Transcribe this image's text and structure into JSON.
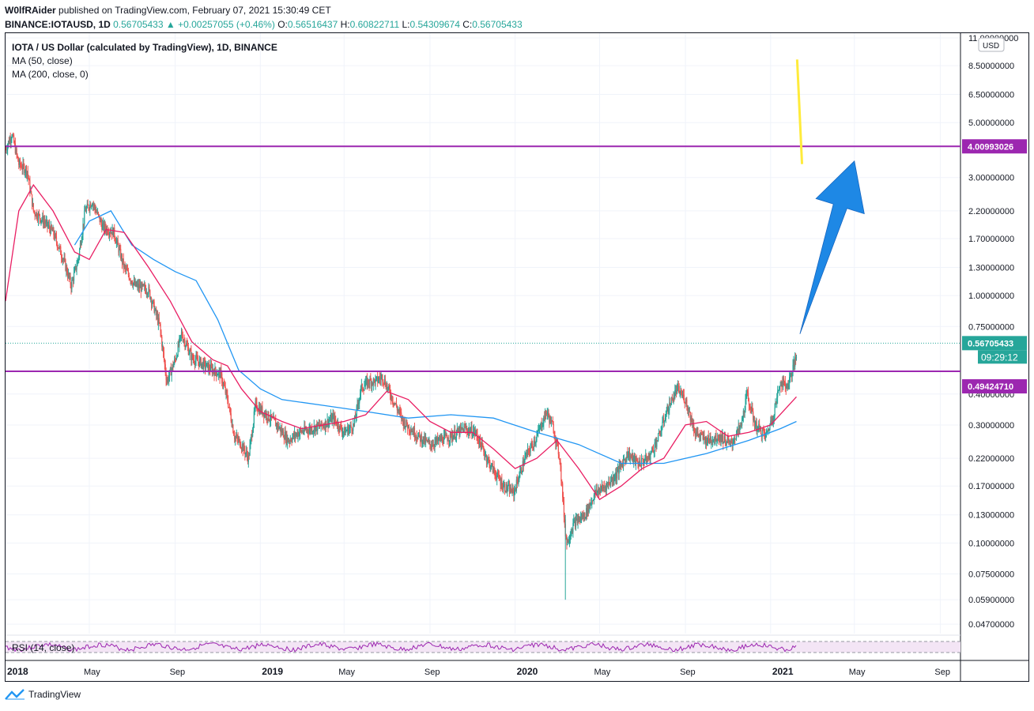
{
  "header": {
    "publisher": "W0lfRAider",
    "published_text": "published on TradingView.com, February 07, 2021 15:30:49 CET",
    "symbol": "BINANCE:IOTAUSD, 1D",
    "last": "0.56705433",
    "change": "▲ +0.00257055 (+0.46%)",
    "o_label": "O:",
    "o": "0.56516437",
    "h_label": "H:",
    "h": "0.60822711",
    "l_label": "L:",
    "l": "0.54309674",
    "c_label": "C:",
    "c": "0.56705433"
  },
  "legend": {
    "title": "IOTA / US Dollar (calculated by TradingView), 1D, BINANCE",
    "ma50": "MA (50, close)",
    "ma200": "MA (200, close, 0)",
    "rsi": "RSI (14, close)"
  },
  "axis": {
    "currency": "USD",
    "countdown": "09:29:12"
  },
  "footer": {
    "brand": "TradingView"
  },
  "colors": {
    "up": "#26a69a",
    "down": "#ef5350",
    "ma50": "#e91e63",
    "ma200": "#2196f3",
    "level": "#9c27b0",
    "rsi": "#9c27b0",
    "arrow": "#1e88e5",
    "marker": "#ffeb3b",
    "last_price": "#26a69a"
  },
  "chart_data": {
    "type": "candlestick",
    "scale": "log",
    "ylim": [
      0.045,
      11.0
    ],
    "x_range": [
      "2018-01-01",
      "2021-09-30"
    ],
    "y_ticks": [
      "11.00000000",
      "8.50000000",
      "6.50000000",
      "5.00000000",
      "3.00000000",
      "2.20000000",
      "1.70000000",
      "1.30000000",
      "1.00000000",
      "0.75000000",
      "0.40000000",
      "0.30000000",
      "0.22000000",
      "0.17000000",
      "0.13000000",
      "0.10000000",
      "0.07500000",
      "0.05900000",
      "0.04700000"
    ],
    "x_ticks": [
      {
        "date": "2018-01-01",
        "label": "2018",
        "bold": true
      },
      {
        "date": "2018-05-01",
        "label": "May",
        "bold": false
      },
      {
        "date": "2018-09-01",
        "label": "Sep",
        "bold": false
      },
      {
        "date": "2019-01-01",
        "label": "2019",
        "bold": true
      },
      {
        "date": "2019-05-01",
        "label": "May",
        "bold": false
      },
      {
        "date": "2019-09-01",
        "label": "Sep",
        "bold": false
      },
      {
        "date": "2020-01-01",
        "label": "2020",
        "bold": true
      },
      {
        "date": "2020-05-01",
        "label": "May",
        "bold": false
      },
      {
        "date": "2020-09-01",
        "label": "Sep",
        "bold": false
      },
      {
        "date": "2021-01-01",
        "label": "2021",
        "bold": true
      },
      {
        "date": "2021-05-01",
        "label": "May",
        "bold": false
      },
      {
        "date": "2021-09-01",
        "label": "Sep",
        "bold": false
      }
    ],
    "horizontal_levels": [
      {
        "value": 4.00993026,
        "label": "4.00993026"
      },
      {
        "value": 0.4942471,
        "label": "0.49424710"
      }
    ],
    "last_price": {
      "value": 0.56705433,
      "label": "0.56705433"
    },
    "close_path": [
      [
        "2018-01-01",
        3.9
      ],
      [
        "2018-01-10",
        4.5
      ],
      [
        "2018-01-20",
        3.4
      ],
      [
        "2018-02-01",
        3.2
      ],
      [
        "2018-02-10",
        2.2
      ],
      [
        "2018-02-25",
        2.0
      ],
      [
        "2018-03-10",
        1.8
      ],
      [
        "2018-03-25",
        1.4
      ],
      [
        "2018-04-05",
        1.1
      ],
      [
        "2018-04-15",
        1.4
      ],
      [
        "2018-04-25",
        2.2
      ],
      [
        "2018-05-05",
        2.4
      ],
      [
        "2018-05-20",
        1.9
      ],
      [
        "2018-06-05",
        1.8
      ],
      [
        "2018-06-20",
        1.3
      ],
      [
        "2018-07-05",
        1.1
      ],
      [
        "2018-07-25",
        1.05
      ],
      [
        "2018-08-10",
        0.75
      ],
      [
        "2018-08-20",
        0.45
      ],
      [
        "2018-09-01",
        0.55
      ],
      [
        "2018-09-10",
        0.7
      ],
      [
        "2018-09-25",
        0.56
      ],
      [
        "2018-10-10",
        0.53
      ],
      [
        "2018-10-25",
        0.5
      ],
      [
        "2018-11-05",
        0.48
      ],
      [
        "2018-11-15",
        0.38
      ],
      [
        "2018-11-25",
        0.27
      ],
      [
        "2018-12-05",
        0.25
      ],
      [
        "2018-12-15",
        0.22
      ],
      [
        "2018-12-25",
        0.36
      ],
      [
        "2019-01-10",
        0.33
      ],
      [
        "2019-01-25",
        0.3
      ],
      [
        "2019-02-10",
        0.26
      ],
      [
        "2019-02-25",
        0.28
      ],
      [
        "2019-03-15",
        0.29
      ],
      [
        "2019-04-01",
        0.3
      ],
      [
        "2019-04-15",
        0.32
      ],
      [
        "2019-05-01",
        0.28
      ],
      [
        "2019-05-15",
        0.3
      ],
      [
        "2019-05-25",
        0.42
      ],
      [
        "2019-06-05",
        0.45
      ],
      [
        "2019-06-15",
        0.45
      ],
      [
        "2019-06-25",
        0.47
      ],
      [
        "2019-07-10",
        0.38
      ],
      [
        "2019-07-25",
        0.31
      ],
      [
        "2019-08-15",
        0.27
      ],
      [
        "2019-09-01",
        0.25
      ],
      [
        "2019-09-15",
        0.26
      ],
      [
        "2019-10-01",
        0.27
      ],
      [
        "2019-10-20",
        0.29
      ],
      [
        "2019-11-05",
        0.28
      ],
      [
        "2019-11-25",
        0.21
      ],
      [
        "2019-12-15",
        0.17
      ],
      [
        "2019-12-30",
        0.16
      ],
      [
        "2020-01-15",
        0.22
      ],
      [
        "2020-02-01",
        0.27
      ],
      [
        "2020-02-15",
        0.34
      ],
      [
        "2020-02-25",
        0.29
      ],
      [
        "2020-03-05",
        0.22
      ],
      [
        "2020-03-12",
        0.12
      ],
      [
        "2020-03-15",
        0.1
      ],
      [
        "2020-03-25",
        0.12
      ],
      [
        "2020-04-10",
        0.13
      ],
      [
        "2020-04-25",
        0.16
      ],
      [
        "2020-05-10",
        0.17
      ],
      [
        "2020-05-25",
        0.19
      ],
      [
        "2020-06-10",
        0.23
      ],
      [
        "2020-06-25",
        0.21
      ],
      [
        "2020-07-10",
        0.22
      ],
      [
        "2020-07-25",
        0.27
      ],
      [
        "2020-08-05",
        0.34
      ],
      [
        "2020-08-20",
        0.42
      ],
      [
        "2020-09-01",
        0.38
      ],
      [
        "2020-09-15",
        0.28
      ],
      [
        "2020-10-01",
        0.26
      ],
      [
        "2020-10-20",
        0.27
      ],
      [
        "2020-11-05",
        0.25
      ],
      [
        "2020-11-20",
        0.3
      ],
      [
        "2020-11-28",
        0.4
      ],
      [
        "2020-12-10",
        0.3
      ],
      [
        "2020-12-25",
        0.27
      ],
      [
        "2021-01-05",
        0.33
      ],
      [
        "2021-01-15",
        0.45
      ],
      [
        "2021-01-25",
        0.43
      ],
      [
        "2021-02-01",
        0.5
      ],
      [
        "2021-02-07",
        0.567
      ]
    ],
    "ma50_path": [
      [
        "2018-01-01",
        0.95
      ],
      [
        "2018-01-20",
        2.2
      ],
      [
        "2018-02-10",
        2.8
      ],
      [
        "2018-03-10",
        2.2
      ],
      [
        "2018-04-10",
        1.5
      ],
      [
        "2018-05-01",
        1.4
      ],
      [
        "2018-05-25",
        1.85
      ],
      [
        "2018-06-20",
        1.8
      ],
      [
        "2018-07-25",
        1.3
      ],
      [
        "2018-08-25",
        0.95
      ],
      [
        "2018-09-25",
        0.65
      ],
      [
        "2018-10-25",
        0.55
      ],
      [
        "2018-11-15",
        0.52
      ],
      [
        "2018-12-05",
        0.42
      ],
      [
        "2019-01-01",
        0.34
      ],
      [
        "2019-02-01",
        0.31
      ],
      [
        "2019-03-01",
        0.29
      ],
      [
        "2019-04-01",
        0.3
      ],
      [
        "2019-05-01",
        0.31
      ],
      [
        "2019-06-01",
        0.33
      ],
      [
        "2019-07-01",
        0.41
      ],
      [
        "2019-08-01",
        0.38
      ],
      [
        "2019-09-01",
        0.31
      ],
      [
        "2019-10-01",
        0.28
      ],
      [
        "2019-11-01",
        0.28
      ],
      [
        "2019-12-01",
        0.24
      ],
      [
        "2020-01-01",
        0.2
      ],
      [
        "2020-02-01",
        0.22
      ],
      [
        "2020-03-01",
        0.26
      ],
      [
        "2020-04-01",
        0.2
      ],
      [
        "2020-05-01",
        0.15
      ],
      [
        "2020-06-01",
        0.17
      ],
      [
        "2020-07-01",
        0.2
      ],
      [
        "2020-08-01",
        0.22
      ],
      [
        "2020-09-01",
        0.3
      ],
      [
        "2020-10-01",
        0.31
      ],
      [
        "2020-11-01",
        0.27
      ],
      [
        "2020-12-01",
        0.28
      ],
      [
        "2021-01-01",
        0.3
      ],
      [
        "2021-02-07",
        0.39
      ]
    ],
    "ma200_path": [
      [
        "2018-04-10",
        1.6
      ],
      [
        "2018-05-01",
        2.0
      ],
      [
        "2018-06-01",
        2.2
      ],
      [
        "2018-07-01",
        1.6
      ],
      [
        "2018-08-01",
        1.4
      ],
      [
        "2018-09-01",
        1.25
      ],
      [
        "2018-10-01",
        1.15
      ],
      [
        "2018-11-01",
        0.8
      ],
      [
        "2018-12-01",
        0.5
      ],
      [
        "2019-01-01",
        0.42
      ],
      [
        "2019-02-01",
        0.38
      ],
      [
        "2019-04-01",
        0.36
      ],
      [
        "2019-06-01",
        0.34
      ],
      [
        "2019-08-01",
        0.32
      ],
      [
        "2019-10-01",
        0.33
      ],
      [
        "2019-12-01",
        0.32
      ],
      [
        "2020-02-01",
        0.28
      ],
      [
        "2020-04-01",
        0.25
      ],
      [
        "2020-06-01",
        0.21
      ],
      [
        "2020-08-01",
        0.21
      ],
      [
        "2020-10-01",
        0.23
      ],
      [
        "2020-12-01",
        0.26
      ],
      [
        "2021-01-15",
        0.29
      ],
      [
        "2021-02-07",
        0.31
      ]
    ],
    "drawings": [
      {
        "type": "arrow",
        "from": [
          "2021-02-12",
          0.7
        ],
        "to": [
          "2021-05-01",
          3.5
        ]
      },
      {
        "type": "line",
        "from": [
          "2021-02-08",
          9.0
        ],
        "to": [
          "2021-02-15",
          3.4
        ]
      }
    ]
  }
}
